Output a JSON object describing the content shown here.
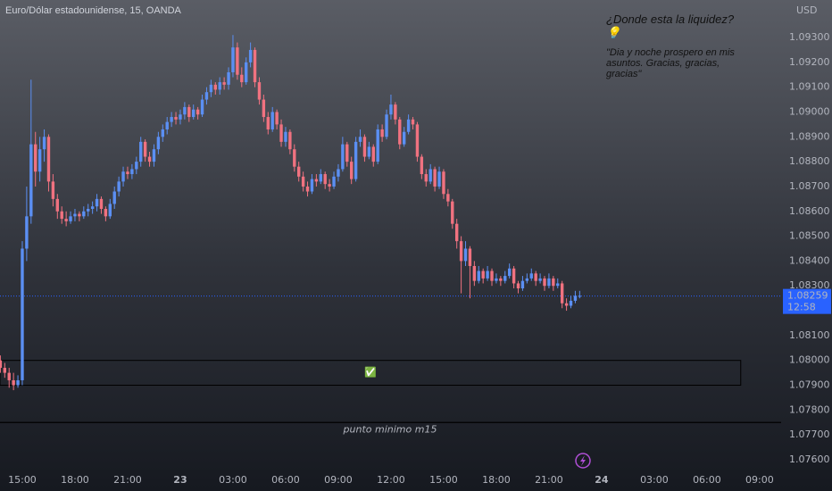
{
  "chart_data": {
    "type": "candlestick",
    "title": "Euro/Dólar estadounidense, 15, OANDA",
    "currency": "USD",
    "annotation_title": "¿Donde esta la liquidez? 💡",
    "annotation_text": "\"Dia y noche prospero en mis asuntos. Gracias, gracias, gracias\"",
    "zone_icon": "✅",
    "level_label": "punto minimo m15",
    "last_price": {
      "value": 1.08259,
      "label": "1.08259"
    },
    "countdown": "12:58",
    "up_color": "#5b8ff3",
    "down_color": "#f07280",
    "ylim": [
      1.07564,
      1.09451
    ],
    "xlim": [
      -0.08,
      177.9
    ],
    "yticks": [
      {
        "value": 1.093,
        "label": "1.09300"
      },
      {
        "value": 1.092,
        "label": "1.09200"
      },
      {
        "value": 1.091,
        "label": "1.09100"
      },
      {
        "value": 1.09,
        "label": "1.09000"
      },
      {
        "value": 1.089,
        "label": "1.08900"
      },
      {
        "value": 1.088,
        "label": "1.08800"
      },
      {
        "value": 1.087,
        "label": "1.08700"
      },
      {
        "value": 1.086,
        "label": "1.08600"
      },
      {
        "value": 1.085,
        "label": "1.08500"
      },
      {
        "value": 1.084,
        "label": "1.08400"
      },
      {
        "value": 1.083,
        "label": "1.08300"
      },
      {
        "value": 1.081,
        "label": "1.08100"
      },
      {
        "value": 1.08,
        "label": "1.08000"
      },
      {
        "value": 1.079,
        "label": "1.07900"
      },
      {
        "value": 1.078,
        "label": "1.07800"
      },
      {
        "value": 1.077,
        "label": "1.07700"
      },
      {
        "value": 1.076,
        "label": "1.07600"
      }
    ],
    "xticks": [
      {
        "value": 5,
        "label": "15:00"
      },
      {
        "value": 17,
        "label": "18:00"
      },
      {
        "value": 29,
        "label": "21:00"
      },
      {
        "value": 41,
        "label": "23"
      },
      {
        "value": 53,
        "label": "03:00"
      },
      {
        "value": 65,
        "label": "06:00"
      },
      {
        "value": 77,
        "label": "09:00"
      },
      {
        "value": 89,
        "label": "12:00"
      },
      {
        "value": 101,
        "label": "15:00"
      },
      {
        "value": 113,
        "label": "18:00"
      },
      {
        "value": 125,
        "label": "21:00"
      },
      {
        "value": 137,
        "label": "24"
      },
      {
        "value": 149,
        "label": "03:00"
      },
      {
        "value": 161,
        "label": "06:00"
      },
      {
        "value": 173,
        "label": "09:00"
      }
    ],
    "zone": {
      "x": [
        -0.08,
        168.7
      ],
      "y": [
        1.079,
        1.08
      ]
    },
    "level": 1.0775,
    "candles": [
      [
        1.08,
        1.0802,
        1.0795,
        1.0797
      ],
      [
        1.0797,
        1.0799,
        1.0793,
        1.0795
      ],
      [
        1.0795,
        1.0797,
        1.0789,
        1.0792
      ],
      [
        1.0792,
        1.0795,
        1.0788,
        1.079
      ],
      [
        1.079,
        1.0794,
        1.0789,
        1.0792
      ],
      [
        1.0792,
        1.0848,
        1.079,
        1.0845
      ],
      [
        1.0845,
        1.087,
        1.084,
        1.0858
      ],
      [
        1.0858,
        1.0913,
        1.0855,
        1.0887
      ],
      [
        1.0887,
        1.0892,
        1.087,
        1.0876
      ],
      [
        1.0876,
        1.089,
        1.0872,
        1.0885
      ],
      [
        1.0885,
        1.0893,
        1.088,
        1.089
      ],
      [
        1.089,
        1.0891,
        1.0868,
        1.0872
      ],
      [
        1.0872,
        1.0875,
        1.0862,
        1.0865
      ],
      [
        1.0865,
        1.0867,
        1.0857,
        1.086
      ],
      [
        1.086,
        1.0862,
        1.0855,
        1.0857
      ],
      [
        1.0857,
        1.086,
        1.0854,
        1.0856
      ],
      [
        1.0856,
        1.086,
        1.0855,
        1.0858
      ],
      [
        1.0858,
        1.0861,
        1.0856,
        1.0859
      ],
      [
        1.0859,
        1.086,
        1.0856,
        1.0858
      ],
      [
        1.0858,
        1.0862,
        1.0857,
        1.086
      ],
      [
        1.086,
        1.0863,
        1.0858,
        1.0861
      ],
      [
        1.0861,
        1.0864,
        1.0859,
        1.0862
      ],
      [
        1.0862,
        1.0867,
        1.086,
        1.0865
      ],
      [
        1.0865,
        1.0866,
        1.0859,
        1.0861
      ],
      [
        1.0861,
        1.0862,
        1.0856,
        1.0858
      ],
      [
        1.0858,
        1.0865,
        1.0857,
        1.0863
      ],
      [
        1.0863,
        1.087,
        1.0861,
        1.0868
      ],
      [
        1.0868,
        1.0874,
        1.0866,
        1.0872
      ],
      [
        1.0872,
        1.0878,
        1.087,
        1.0876
      ],
      [
        1.0876,
        1.0878,
        1.0873,
        1.0875
      ],
      [
        1.0875,
        1.0879,
        1.0873,
        1.0877
      ],
      [
        1.0877,
        1.0882,
        1.0875,
        1.088
      ],
      [
        1.088,
        1.089,
        1.0878,
        1.0888
      ],
      [
        1.0888,
        1.0889,
        1.088,
        1.0882
      ],
      [
        1.0882,
        1.0884,
        1.0878,
        1.088
      ],
      [
        1.088,
        1.0887,
        1.0878,
        1.0885
      ],
      [
        1.0885,
        1.0892,
        1.0883,
        1.089
      ],
      [
        1.089,
        1.0895,
        1.0888,
        1.0893
      ],
      [
        1.0893,
        1.0898,
        1.0891,
        1.0896
      ],
      [
        1.0896,
        1.09,
        1.0894,
        1.0898
      ],
      [
        1.0898,
        1.09,
        1.0895,
        1.0897
      ],
      [
        1.0897,
        1.0901,
        1.0895,
        1.0899
      ],
      [
        1.0899,
        1.0904,
        1.0897,
        1.0902
      ],
      [
        1.0902,
        1.0903,
        1.0896,
        1.0898
      ],
      [
        1.0898,
        1.0903,
        1.0897,
        1.0901
      ],
      [
        1.0901,
        1.0902,
        1.0897,
        1.0899
      ],
      [
        1.0899,
        1.0907,
        1.0898,
        1.0905
      ],
      [
        1.0905,
        1.091,
        1.0903,
        1.0908
      ],
      [
        1.0908,
        1.0913,
        1.0906,
        1.0911
      ],
      [
        1.0911,
        1.0912,
        1.0907,
        1.0909
      ],
      [
        1.0909,
        1.0914,
        1.0907,
        1.0912
      ],
      [
        1.0912,
        1.0914,
        1.0909,
        1.0911
      ],
      [
        1.0911,
        1.0918,
        1.0909,
        1.0916
      ],
      [
        1.0916,
        1.0931,
        1.0914,
        1.0926
      ],
      [
        1.0926,
        1.0928,
        1.0913,
        1.0915
      ],
      [
        1.0915,
        1.0918,
        1.091,
        1.0912
      ],
      [
        1.0912,
        1.0922,
        1.0911,
        1.092
      ],
      [
        1.092,
        1.0928,
        1.0918,
        1.0925
      ],
      [
        1.0925,
        1.0926,
        1.091,
        1.0912
      ],
      [
        1.0912,
        1.0914,
        1.0903,
        1.0905
      ],
      [
        1.0905,
        1.0907,
        1.0896,
        1.0898
      ],
      [
        1.0898,
        1.09,
        1.0891,
        1.0893
      ],
      [
        1.0893,
        1.0902,
        1.0892,
        1.09
      ],
      [
        1.09,
        1.0901,
        1.0893,
        1.0895
      ],
      [
        1.0895,
        1.0897,
        1.0886,
        1.0888
      ],
      [
        1.0888,
        1.0894,
        1.0886,
        1.0892
      ],
      [
        1.0892,
        1.0893,
        1.0883,
        1.0885
      ],
      [
        1.0885,
        1.0887,
        1.0876,
        1.0878
      ],
      [
        1.0878,
        1.088,
        1.0872,
        1.0874
      ],
      [
        1.0874,
        1.0876,
        1.0868,
        1.087
      ],
      [
        1.087,
        1.0872,
        1.0866,
        1.0868
      ],
      [
        1.0868,
        1.0875,
        1.0867,
        1.0873
      ],
      [
        1.0873,
        1.0875,
        1.087,
        1.0872
      ],
      [
        1.0872,
        1.0877,
        1.0871,
        1.0875
      ],
      [
        1.0875,
        1.0876,
        1.0869,
        1.0871
      ],
      [
        1.0871,
        1.0873,
        1.0868,
        1.087
      ],
      [
        1.087,
        1.0876,
        1.0869,
        1.0874
      ],
      [
        1.0874,
        1.0879,
        1.0872,
        1.0877
      ],
      [
        1.0877,
        1.089,
        1.0876,
        1.0887
      ],
      [
        1.0887,
        1.0888,
        1.0878,
        1.088
      ],
      [
        1.088,
        1.0882,
        1.0871,
        1.0873
      ],
      [
        1.0873,
        1.089,
        1.0872,
        1.0888
      ],
      [
        1.0888,
        1.0893,
        1.0886,
        1.089
      ],
      [
        1.089,
        1.0891,
        1.088,
        1.0882
      ],
      [
        1.0882,
        1.0888,
        1.0881,
        1.0886
      ],
      [
        1.0886,
        1.0887,
        1.0878,
        1.088
      ],
      [
        1.088,
        1.0895,
        1.0879,
        1.0893
      ],
      [
        1.0893,
        1.0895,
        1.0888,
        1.089
      ],
      [
        1.089,
        1.0901,
        1.0889,
        1.0899
      ],
      [
        1.0899,
        1.0907,
        1.0897,
        1.0903
      ],
      [
        1.0903,
        1.0904,
        1.0895,
        1.0897
      ],
      [
        1.0897,
        1.0898,
        1.0885,
        1.0887
      ],
      [
        1.0887,
        1.0894,
        1.0886,
        1.0892
      ],
      [
        1.0892,
        1.0899,
        1.0891,
        1.0897
      ],
      [
        1.0897,
        1.0898,
        1.0893,
        1.0895
      ],
      [
        1.0895,
        1.0896,
        1.088,
        1.0882
      ],
      [
        1.0882,
        1.0883,
        1.0873,
        1.0875
      ],
      [
        1.0875,
        1.0877,
        1.087,
        1.0872
      ],
      [
        1.0872,
        1.0879,
        1.0871,
        1.0877
      ],
      [
        1.0877,
        1.0878,
        1.0868,
        1.087
      ],
      [
        1.087,
        1.0878,
        1.0869,
        1.0876
      ],
      [
        1.0876,
        1.0877,
        1.0865,
        1.0867
      ],
      [
        1.0867,
        1.0869,
        1.0862,
        1.0864
      ],
      [
        1.0864,
        1.0865,
        1.0853,
        1.0855
      ],
      [
        1.0855,
        1.0857,
        1.0845,
        1.0848
      ],
      [
        1.0848,
        1.085,
        1.0827,
        1.084
      ],
      [
        1.084,
        1.0848,
        1.0838,
        1.0845
      ],
      [
        1.0845,
        1.0846,
        1.0825,
        1.0838
      ],
      [
        1.0838,
        1.084,
        1.083,
        1.0832
      ],
      [
        1.0832,
        1.0838,
        1.0831,
        1.0836
      ],
      [
        1.0836,
        1.0837,
        1.0831,
        1.0833
      ],
      [
        1.0833,
        1.0838,
        1.0832,
        1.0836
      ],
      [
        1.0836,
        1.0837,
        1.083,
        1.0832
      ],
      [
        1.0832,
        1.0835,
        1.0831,
        1.0833
      ],
      [
        1.0833,
        1.0834,
        1.083,
        1.0832
      ],
      [
        1.0832,
        1.0836,
        1.0831,
        1.0834
      ],
      [
        1.0834,
        1.0839,
        1.0833,
        1.0837
      ],
      [
        1.0837,
        1.0838,
        1.0829,
        1.0831
      ],
      [
        1.0831,
        1.0832,
        1.0827,
        1.0829
      ],
      [
        1.0829,
        1.0834,
        1.0828,
        1.0832
      ],
      [
        1.0832,
        1.0835,
        1.0831,
        1.0833
      ],
      [
        1.0833,
        1.0837,
        1.0832,
        1.0835
      ],
      [
        1.0835,
        1.0836,
        1.083,
        1.0832
      ],
      [
        1.0832,
        1.0835,
        1.0831,
        1.0833
      ],
      [
        1.0833,
        1.0834,
        1.0828,
        1.083
      ],
      [
        1.083,
        1.0835,
        1.0829,
        1.0833
      ],
      [
        1.0833,
        1.0834,
        1.0828,
        1.083
      ],
      [
        1.083,
        1.0833,
        1.0829,
        1.0831
      ],
      [
        1.0831,
        1.0832,
        1.0821,
        1.0823
      ],
      [
        1.0823,
        1.0825,
        1.082,
        1.0822
      ],
      [
        1.0822,
        1.0826,
        1.0821,
        1.0824
      ],
      [
        1.0824,
        1.0828,
        1.0823,
        1.0826
      ],
      [
        1.0826,
        1.0828,
        1.0825,
        1.0826
      ]
    ]
  }
}
